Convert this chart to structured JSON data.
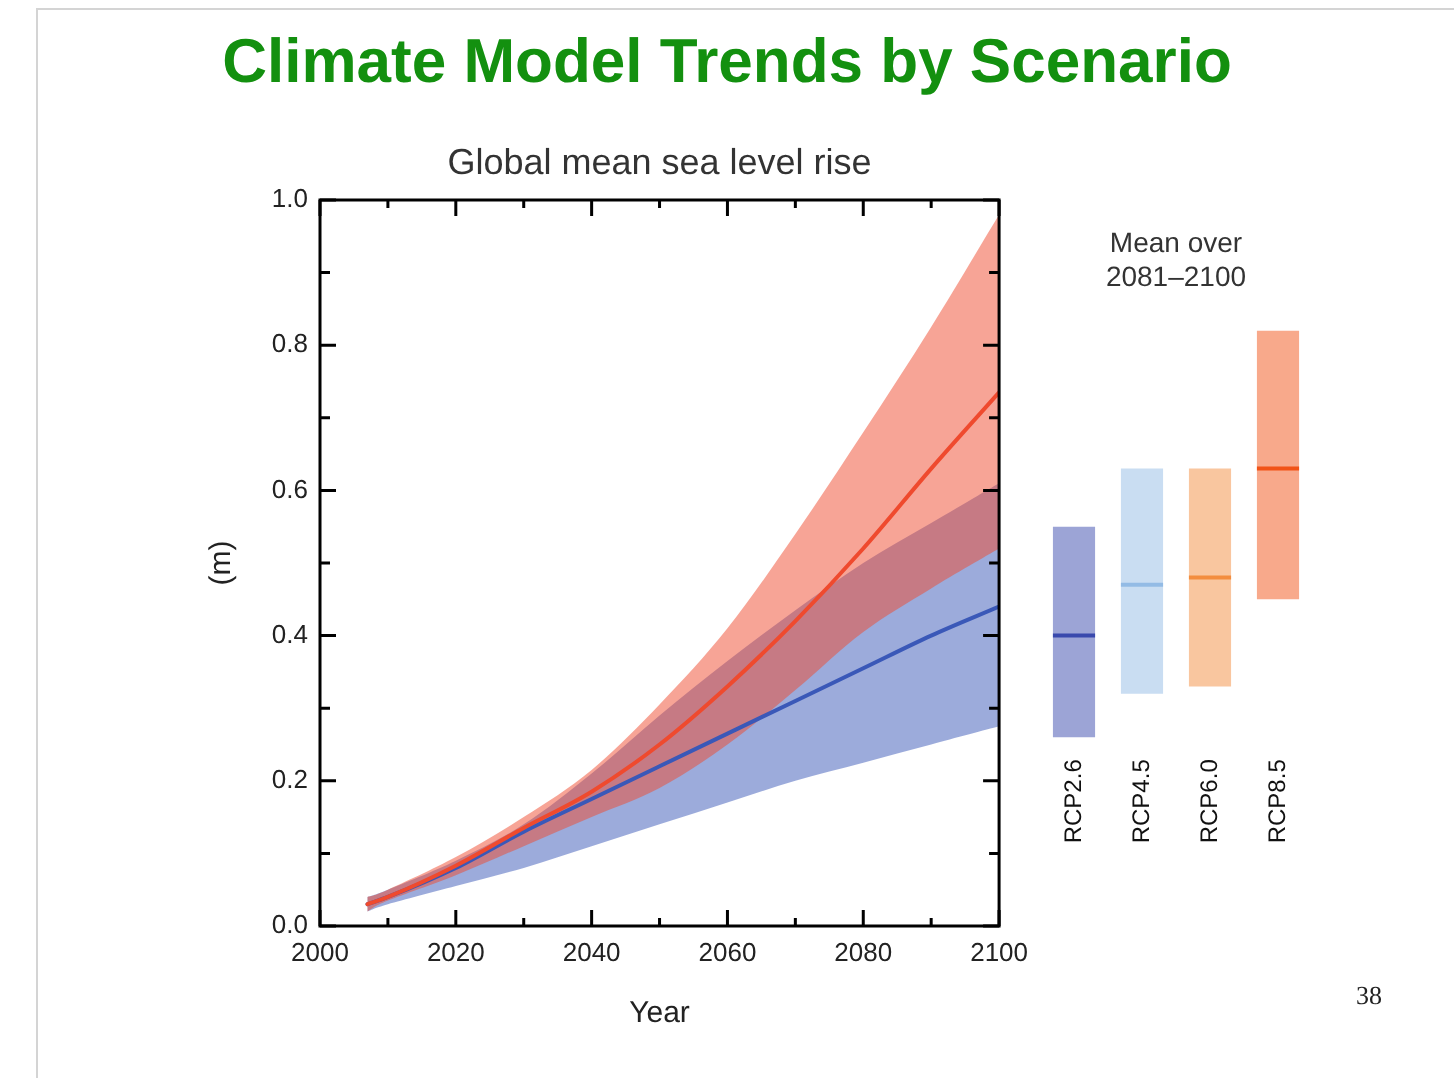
{
  "chart_data": [
    {
      "type": "line",
      "title": "Climate Model Trends by Scenario",
      "subtitle": "Global mean sea level rise",
      "xlabel": "Year",
      "ylabel": "(m)",
      "annotations": [
        "38"
      ],
      "x": [
        2007,
        2010,
        2020,
        2030,
        2040,
        2050,
        2060,
        2070,
        2080,
        2090,
        2100
      ],
      "xlim": [
        2000,
        2100
      ],
      "xticks": [
        2000,
        {
          "value": 2010,
          "label": null
        },
        2020,
        {
          "value": 2030,
          "label": null
        },
        2040,
        {
          "value": 2050,
          "label": null
        },
        2060,
        {
          "value": 2070,
          "label": null
        },
        2080,
        {
          "value": 2090,
          "label": null
        },
        2100
      ],
      "ylim": [
        0,
        1
      ],
      "yticks": [
        {
          "value": 0,
          "label": "0.0"
        },
        {
          "value": 0.1,
          "label": null
        },
        0.2,
        {
          "value": 0.3,
          "label": null
        },
        0.4,
        {
          "value": 0.5,
          "label": null
        },
        0.6,
        {
          "value": 0.7,
          "label": null
        },
        0.8,
        {
          "value": 0.9,
          "label": null
        },
        {
          "value": 1,
          "label": "1.0"
        }
      ],
      "marker": "none",
      "series": [
        {
          "color": "#3a58b8",
          "values": [
            0.03,
            0.04,
            0.08,
            0.13,
            0.175,
            0.22,
            0.265,
            0.31,
            0.355,
            0.4,
            0.44
          ],
          "lower": [
            0.02,
            0.03,
            0.055,
            0.08,
            0.11,
            0.14,
            0.17,
            0.2,
            0.225,
            0.25,
            0.275
          ],
          "upper": [
            0.04,
            0.05,
            0.09,
            0.14,
            0.21,
            0.29,
            0.365,
            0.435,
            0.5,
            0.555,
            0.61
          ]
        },
        {
          "color": "#ef4a2e",
          "values": [
            0.03,
            0.04,
            0.083,
            0.135,
            0.185,
            0.25,
            0.33,
            0.42,
            0.52,
            0.63,
            0.735
          ],
          "lower": [
            0.02,
            0.035,
            0.07,
            0.11,
            0.15,
            0.19,
            0.25,
            0.325,
            0.405,
            0.465,
            0.52
          ],
          "upper": [
            0.04,
            0.05,
            0.095,
            0.15,
            0.215,
            0.305,
            0.41,
            0.54,
            0.68,
            0.825,
            0.98
          ]
        }
      ]
    },
    {
      "type": "box",
      "title": "Mean over 2081–2100",
      "categories": [
        "RCP2.6",
        "RCP4.5",
        "RCP6.0",
        "RCP8.5"
      ],
      "boxes": [
        {
          "low": 0.26,
          "q1": 0.26,
          "median": 0.4,
          "q3": 0.55,
          "high": 0.55
        },
        {
          "low": 0.32,
          "q1": 0.32,
          "median": 0.47,
          "q3": 0.63,
          "high": 0.63
        },
        {
          "low": 0.33,
          "q1": 0.33,
          "median": 0.48,
          "q3": 0.63,
          "high": 0.63
        },
        {
          "low": 0.45,
          "q1": 0.45,
          "median": 0.63,
          "q3": 0.82,
          "high": 0.82
        }
      ],
      "colors": [
        "#9ca4d6",
        "#c9ddf2",
        "#f9c69f",
        "#f8a98b"
      ],
      "ylim": [
        0,
        1
      ],
      "tick_labels": "x"
    }
  ]
}
